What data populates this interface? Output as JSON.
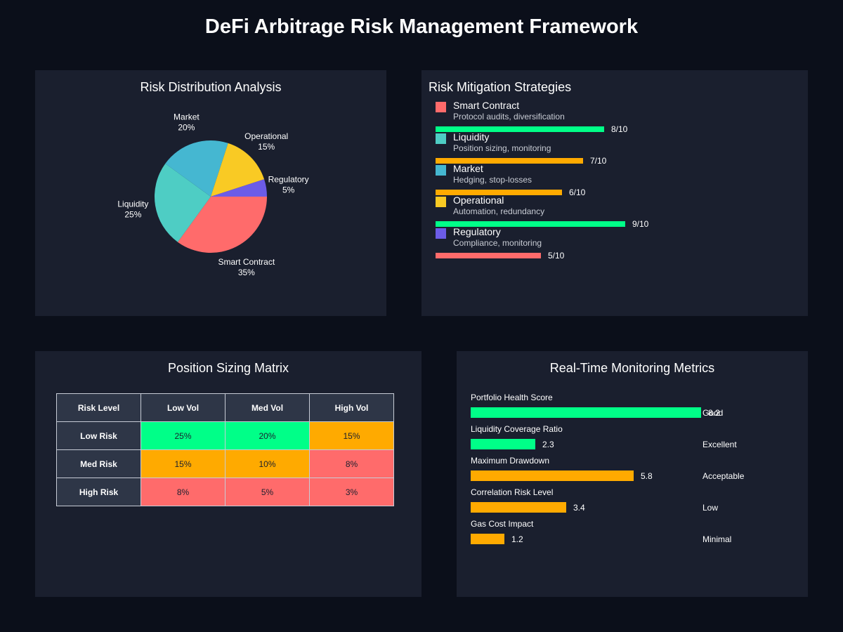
{
  "title": "DeFi Arbitrage Risk Management Framework",
  "colors": {
    "background": "#0b0f1a",
    "panel": "#1a1f2e",
    "green": "#00ff88",
    "orange": "#ffaa00",
    "red": "#ff6b6b",
    "teal": "#4ecdc4",
    "blue": "#45b7d1",
    "yellow": "#f9ca24",
    "purple": "#6c5ce7"
  },
  "risk_distribution": {
    "title": "Risk Distribution Analysis"
  },
  "mitigation": {
    "title": "Risk Mitigation Strategies",
    "items": [
      {
        "name": "Smart Contract",
        "desc": "Protocol audits, diversification",
        "score": 8,
        "score_label": "8/10",
        "swatch": "#ff6b6b",
        "bar_color": "#00ff88"
      },
      {
        "name": "Liquidity",
        "desc": "Position sizing, monitoring",
        "score": 7,
        "score_label": "7/10",
        "swatch": "#4ecdc4",
        "bar_color": "#ffaa00"
      },
      {
        "name": "Market",
        "desc": "Hedging, stop-losses",
        "score": 6,
        "score_label": "6/10",
        "swatch": "#45b7d1",
        "bar_color": "#ffaa00"
      },
      {
        "name": "Operational",
        "desc": "Automation, redundancy",
        "score": 9,
        "score_label": "9/10",
        "swatch": "#f9ca24",
        "bar_color": "#00ff88"
      },
      {
        "name": "Regulatory",
        "desc": "Compliance, monitoring",
        "score": 5,
        "score_label": "5/10",
        "swatch": "#6c5ce7",
        "bar_color": "#ff6b6b"
      }
    ]
  },
  "matrix": {
    "title": "Position Sizing Matrix",
    "headers": [
      "Risk Level",
      "Low Vol",
      "Med Vol",
      "High Vol"
    ],
    "rows": [
      {
        "label": "Low Risk",
        "cells": [
          {
            "v": "25%",
            "c": "#00ff88"
          },
          {
            "v": "20%",
            "c": "#00ff88"
          },
          {
            "v": "15%",
            "c": "#ffaa00"
          }
        ]
      },
      {
        "label": "Med Risk",
        "cells": [
          {
            "v": "15%",
            "c": "#ffaa00"
          },
          {
            "v": "10%",
            "c": "#ffaa00"
          },
          {
            "v": "8%",
            "c": "#ff6b6b"
          }
        ]
      },
      {
        "label": "High Risk",
        "cells": [
          {
            "v": "8%",
            "c": "#ff6b6b"
          },
          {
            "v": "5%",
            "c": "#ff6b6b"
          },
          {
            "v": "3%",
            "c": "#ff6b6b"
          }
        ]
      }
    ]
  },
  "monitoring": {
    "title": "Real-Time Monitoring Metrics",
    "metrics": [
      {
        "label": "Portfolio Health Score",
        "value": 8.2,
        "value_label": "8.2",
        "status": "Good",
        "color": "#00ff88"
      },
      {
        "label": "Liquidity Coverage Ratio",
        "value": 2.3,
        "value_label": "2.3",
        "status": "Excellent",
        "color": "#00ff88"
      },
      {
        "label": "Maximum Drawdown",
        "value": 5.8,
        "value_label": "5.8",
        "status": "Acceptable",
        "color": "#ffaa00"
      },
      {
        "label": "Correlation Risk Level",
        "value": 3.4,
        "value_label": "3.4",
        "status": "Low",
        "color": "#ffaa00"
      },
      {
        "label": "Gas Cost Impact",
        "value": 1.2,
        "value_label": "1.2",
        "status": "Minimal",
        "color": "#ffaa00"
      }
    ]
  },
  "chart_data": [
    {
      "type": "pie",
      "title": "Risk Distribution Analysis",
      "slices": [
        {
          "label": "Smart Contract",
          "value": 35,
          "value_label": "35%",
          "color": "#ff6b6b"
        },
        {
          "label": "Liquidity",
          "value": 25,
          "value_label": "25%",
          "color": "#4ecdc4"
        },
        {
          "label": "Market",
          "value": 20,
          "value_label": "20%",
          "color": "#45b7d1"
        },
        {
          "label": "Operational",
          "value": 15,
          "value_label": "15%",
          "color": "#f9ca24"
        },
        {
          "label": "Regulatory",
          "value": 5,
          "value_label": "5%",
          "color": "#6c5ce7"
        }
      ]
    },
    {
      "type": "bar",
      "title": "Risk Mitigation Strategies",
      "orientation": "horizontal",
      "categories": [
        "Smart Contract",
        "Liquidity",
        "Market",
        "Operational",
        "Regulatory"
      ],
      "values": [
        8,
        7,
        6,
        9,
        5
      ],
      "xlim": [
        0,
        10
      ]
    },
    {
      "type": "table",
      "title": "Position Sizing Matrix",
      "columns": [
        "Risk Level",
        "Low Vol",
        "Med Vol",
        "High Vol"
      ],
      "rows": [
        [
          "Low Risk",
          "25%",
          "20%",
          "15%"
        ],
        [
          "Med Risk",
          "15%",
          "10%",
          "8%"
        ],
        [
          "High Risk",
          "8%",
          "5%",
          "3%"
        ]
      ]
    },
    {
      "type": "bar",
      "title": "Real-Time Monitoring Metrics",
      "orientation": "horizontal",
      "categories": [
        "Portfolio Health Score",
        "Liquidity Coverage Ratio",
        "Maximum Drawdown",
        "Correlation Risk Level",
        "Gas Cost Impact"
      ],
      "values": [
        8.2,
        2.3,
        5.8,
        3.4,
        1.2
      ]
    }
  ]
}
